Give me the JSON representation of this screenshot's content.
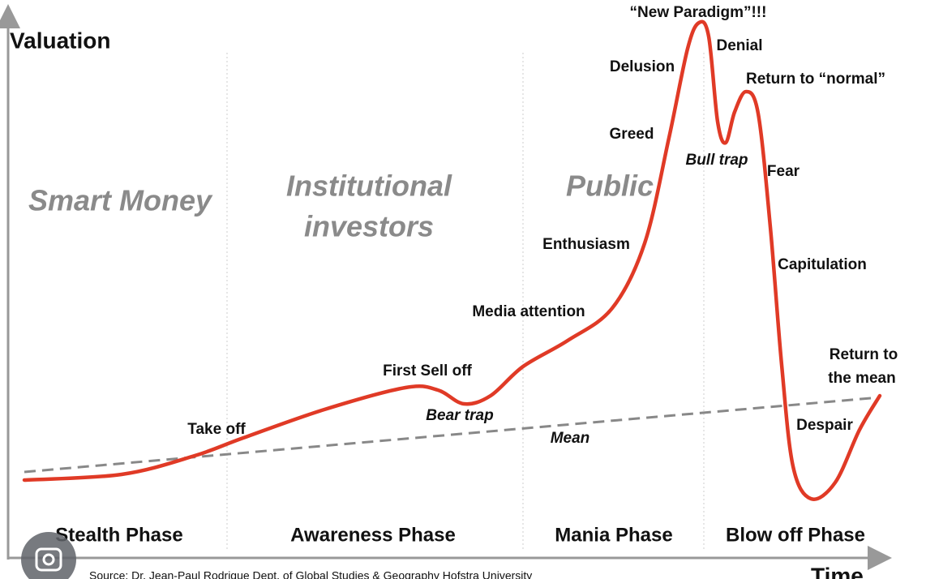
{
  "axes": {
    "y_label": "Valuation",
    "x_label": "Time"
  },
  "groups": [
    "Smart Money",
    "Institutional",
    "investors",
    "Public"
  ],
  "phases": [
    "Stealth Phase",
    "Awareness Phase",
    "Mania Phase",
    "Blow off Phase"
  ],
  "annotations": [
    "Take off",
    "First Sell off",
    "Bear trap",
    "Mean",
    "Media attention",
    "Enthusiasm",
    "Greed",
    "Delusion",
    "“New Paradigm”!!!",
    "Denial",
    "Return to “normal”",
    "Bull trap",
    "Fear",
    "Capitulation",
    "Return to",
    "the mean",
    "Despair"
  ],
  "source": "Source: Dr. Jean-Paul Rodrigue Dept. of Global Studies & Geography Hofstra University"
}
